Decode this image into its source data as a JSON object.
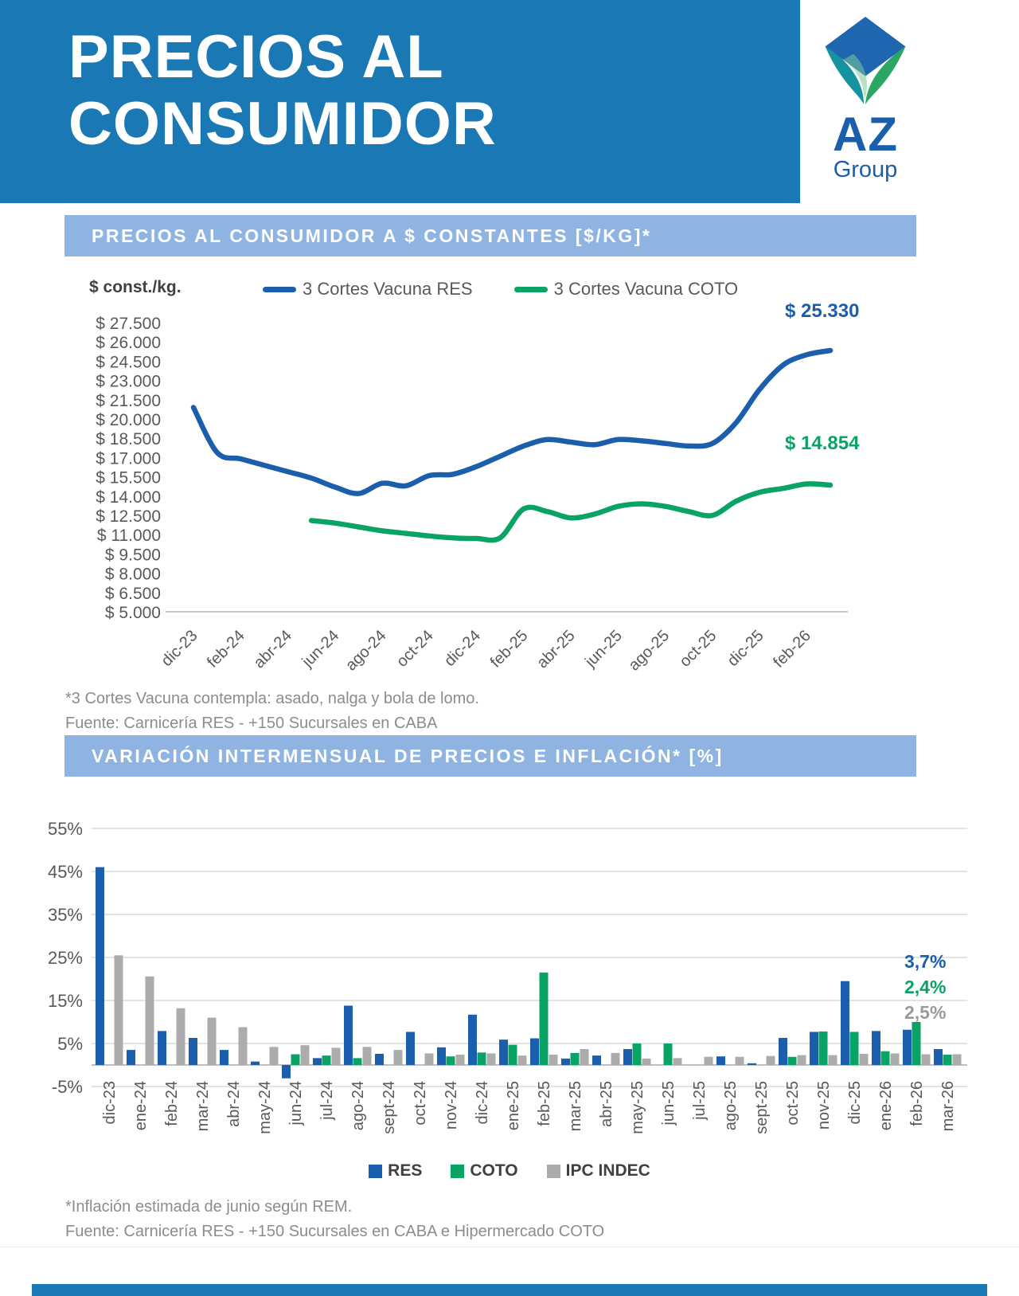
{
  "header": {
    "title_line1": "PRECIOS AL",
    "title_line2": "CONSUMIDOR",
    "logo": {
      "initials": "AZ",
      "name": "Group"
    }
  },
  "colors": {
    "header_blue": "#1A78B5",
    "panel_blue": "#8FB4E2",
    "res_blue": "#1B5FAC",
    "coto_green": "#0AA366",
    "ipc_gray": "#ACACAC",
    "axis_text": "#595959",
    "note_gray": "#8C8C8C"
  },
  "section1": {
    "title": "PRECIOS AL CONSUMIDOR A $ CONSTANTES [$/KG]*",
    "unit_label": "$ const./kg.",
    "legend": [
      {
        "label": "3 Cortes Vacuna RES",
        "color": "#1B5FAC"
      },
      {
        "label": "3 Cortes Vacuna COTO",
        "color": "#0AA366"
      }
    ],
    "end_labels": {
      "res": "$ 25.330",
      "coto": "$ 14.854"
    },
    "footnote1": "*3 Cortes Vacuna contempla: asado, nalga y bola de lomo.",
    "footnote2": "Fuente: Carnicería RES - +150 Sucursales en CABA"
  },
  "section2": {
    "title": "VARIACIÓN INTERMENSUAL DE PRECIOS E INFLACIÓN* [%]",
    "legend": [
      {
        "label": "RES",
        "color": "#1B5FAC"
      },
      {
        "label": "COTO",
        "color": "#0AA366"
      },
      {
        "label": "IPC INDEC",
        "color": "#ACACAC"
      }
    ],
    "end_labels": [
      {
        "text": "3,7%",
        "color": "#1B5FAC"
      },
      {
        "text": "2,4%",
        "color": "#0AA366"
      },
      {
        "text": "2,5%",
        "color": "#9A9A9A"
      }
    ],
    "footnote1": "*Inflación estimada de junio según REM.",
    "footnote2": "Fuente: Carnicería RES - +150 Sucursales en CABA e Hipermercado COTO"
  },
  "chart_data": [
    {
      "type": "line",
      "title": "PRECIOS AL CONSUMIDOR A $ CONSTANTES [$/KG]*",
      "ylabel": "$ const./kg.",
      "ylim": [
        5000,
        27500
      ],
      "ytick_step": 1500,
      "grid": false,
      "legend_position": "top",
      "ytick_labels": [
        "$ 27.500",
        "$ 26.000",
        "$ 24.500",
        "$ 23.000",
        "$ 21.500",
        "$ 20.000",
        "$ 18.500",
        "$ 17.000",
        "$ 15.500",
        "$ 14.000",
        "$ 12.500",
        "$ 11.000",
        "$ 9.500",
        "$ 8.000",
        "$ 6.500",
        "$ 5.000"
      ],
      "categories": [
        "dic-23",
        "ene-24",
        "feb-24",
        "mar-24",
        "abr-24",
        "may-24",
        "jun-24",
        "jul-24",
        "ago-24",
        "sept-24",
        "oct-24",
        "nov-24",
        "dic-24",
        "ene-25",
        "feb-25",
        "mar-25",
        "abr-25",
        "may-25",
        "jun-25",
        "jul-25",
        "ago-25",
        "sept-25",
        "oct-25",
        "nov-25",
        "dic-25",
        "ene-26",
        "feb-26",
        "mar-26"
      ],
      "xtick_labels": [
        "dic-23",
        "feb-24",
        "abr-24",
        "jun-24",
        "ago-24",
        "oct-24",
        "dic-24",
        "feb-25",
        "abr-25",
        "jun-25",
        "ago-25",
        "oct-25",
        "dic-25",
        "feb-26"
      ],
      "series": [
        {
          "name": "3 Cortes Vacuna RES",
          "color": "#1B5FAC",
          "end_label": "$ 25.330",
          "values": [
            20900,
            17400,
            16900,
            16400,
            15900,
            15400,
            14700,
            14200,
            15000,
            14800,
            15600,
            15700,
            16300,
            17100,
            17900,
            18400,
            18200,
            18000,
            18400,
            18300,
            18100,
            17900,
            18100,
            19700,
            22300,
            24200,
            25000,
            25330
          ]
        },
        {
          "name": "3 Cortes Vacuna COTO",
          "color": "#0AA366",
          "end_label": "$ 14.854",
          "values": [
            null,
            null,
            null,
            null,
            null,
            12100,
            11900,
            11600,
            11300,
            11100,
            10900,
            10750,
            10700,
            10750,
            13000,
            12800,
            12300,
            12600,
            13200,
            13400,
            13200,
            12800,
            12500,
            13600,
            14300,
            14600,
            14950,
            14854
          ]
        }
      ]
    },
    {
      "type": "bar",
      "title": "VARIACIÓN INTERMENSUAL DE PRECIOS E INFLACIÓN* [%]",
      "ylim": [
        -5,
        55
      ],
      "ytick_labels": [
        "55%",
        "45%",
        "35%",
        "25%",
        "15%",
        "5%",
        "-5%"
      ],
      "ytick_values": [
        55,
        45,
        35,
        25,
        15,
        5,
        -5
      ],
      "categories": [
        "dic-23",
        "ene-24",
        "feb-24",
        "mar-24",
        "abr-24",
        "may-24",
        "jun-24",
        "jul-24",
        "ago-24",
        "sept-24",
        "oct-24",
        "nov-24",
        "dic-24",
        "ene-25",
        "feb-25",
        "mar-25",
        "abr-25",
        "may-25",
        "jun-25",
        "jul-25",
        "ago-25",
        "sept-25",
        "oct-25",
        "nov-25",
        "dic-25",
        "ene-26",
        "feb-26",
        "mar-26"
      ],
      "series": [
        {
          "name": "RES",
          "color": "#1B5FAC",
          "values": [
            46,
            3.5,
            7.9,
            6.3,
            3.5,
            0.8,
            -3.1,
            1.6,
            13.8,
            2.6,
            7.7,
            4.1,
            11.7,
            5.9,
            6.2,
            1.5,
            2.2,
            3.7,
            0,
            0,
            2,
            0.4,
            6.3,
            7.7,
            19.5,
            7.9,
            8.2,
            3.7
          ]
        },
        {
          "name": "COTO",
          "color": "#0AA366",
          "values": [
            0,
            0,
            0,
            0,
            0,
            0,
            2.5,
            2.2,
            1.6,
            0,
            0,
            2,
            2.9,
            4.7,
            21.5,
            2.8,
            0,
            5,
            5,
            0,
            0,
            0,
            1.9,
            7.8,
            7.7,
            3.2,
            10,
            2.4
          ]
        },
        {
          "name": "IPC INDEC",
          "color": "#ACACAC",
          "values": [
            25.5,
            20.6,
            13.2,
            11,
            8.8,
            4.2,
            4.6,
            4,
            4.2,
            3.5,
            2.7,
            2.4,
            2.7,
            2.2,
            2.4,
            3.7,
            2.8,
            1.5,
            1.6,
            1.9,
            1.9,
            2.1,
            2.3,
            2.3,
            2.6,
            2.7,
            2.5,
            2.5
          ]
        }
      ],
      "end_labels": [
        "3,7%",
        "2,4%",
        "2,5%"
      ]
    }
  ]
}
